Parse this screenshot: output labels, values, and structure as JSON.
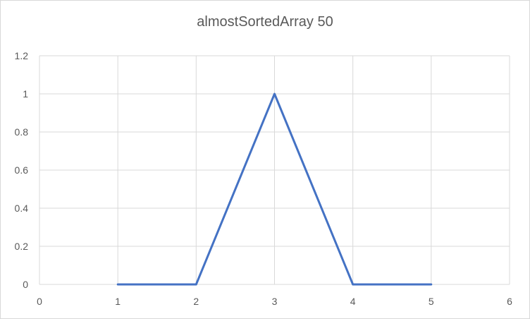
{
  "chart_data": {
    "type": "line",
    "title": "almostSortedArray 50",
    "xlabel": "",
    "ylabel": "",
    "x": [
      1,
      2,
      3,
      4,
      5
    ],
    "series": [
      {
        "values": [
          0,
          0,
          1,
          0,
          0
        ],
        "color": "#4472c4"
      }
    ],
    "xlim": [
      0,
      6
    ],
    "ylim": [
      0,
      1.2
    ],
    "x_ticks": [
      "0",
      "1",
      "2",
      "3",
      "4",
      "5",
      "6"
    ],
    "y_ticks": [
      "0",
      "0.2",
      "0.4",
      "0.6",
      "0.8",
      "1",
      "1.2"
    ],
    "grid": true,
    "legend": "none"
  }
}
